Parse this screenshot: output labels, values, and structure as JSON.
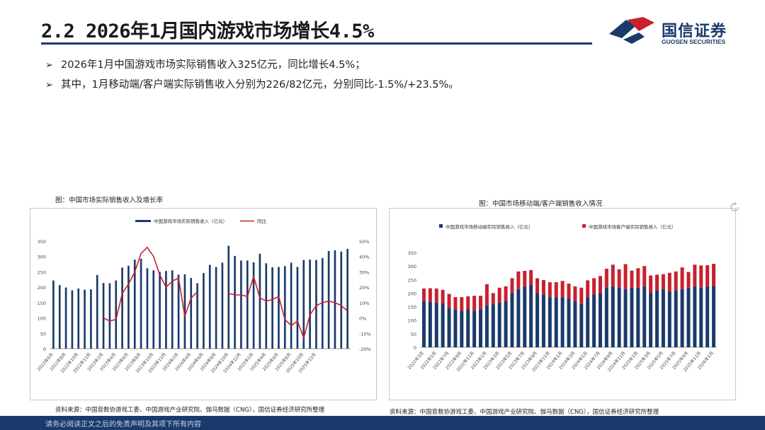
{
  "header": {
    "title": "2.2 2026年1月国内游戏市场增长4.5%",
    "logo_cn": "国信证券",
    "logo_en": "GUOSEN SECURITIES",
    "colors": {
      "navy": "#1a3a6b",
      "red": "#c8202f"
    }
  },
  "bullets": [
    "2026年1月中国游戏市场实际销售收入325亿元，同比增长4.5%；",
    "其中，1月移动端/客户端实际销售收入分别为226/82亿元，分别同比-1.5%/+23.5%。"
  ],
  "left_chart": {
    "caption": "图：中国市场实际销售收入及增长率",
    "source": "资料来源：中国音数协游戏工委、中国游戏产业研究院、伽马数据（CNG），国信证券经济研究所整理"
  },
  "right_chart": {
    "caption": "图：中国市场移动端/客户端销售收入情况",
    "source": "资料来源：中国音数协游戏工委、中国游戏产业研究院、伽马数据（CNG），国信证券经济研究所整理"
  },
  "footer": {
    "disclaimer": "请务必阅读正文之后的免责声明及其项下所有内容"
  },
  "chart_data": [
    {
      "type": "bar",
      "title": "图：中国市场实际销售收入及增长率",
      "series": [
        {
          "name": "中国游戏市场实际销售收入（亿元）",
          "kind": "bar",
          "color": "#1a3a6b",
          "axis": "left",
          "values": [
            222,
            207,
            199,
            190,
            196,
            192,
            193,
            240,
            214,
            213,
            222,
            264,
            270,
            290,
            293,
            262,
            255,
            250,
            253,
            255,
            241,
            242,
            230,
            213,
            246,
            273,
            266,
            280,
            335,
            302,
            287,
            287,
            281,
            309,
            278,
            265,
            266,
            269,
            280,
            266,
            289,
            290,
            289,
            295,
            318,
            320,
            316,
            325
          ]
        },
        {
          "name": "同比",
          "kind": "line",
          "color": "#c8202f",
          "axis": "right",
          "values": [
            null,
            null,
            null,
            null,
            null,
            null,
            null,
            null,
            0,
            -2,
            -1,
            16,
            22,
            30,
            42,
            46,
            40,
            28,
            20,
            24,
            26,
            1,
            13,
            17,
            null,
            null,
            null,
            null,
            16,
            15,
            15,
            14,
            27,
            13,
            11,
            12,
            14,
            -1,
            -5,
            -2,
            -13,
            2,
            8,
            10,
            11,
            10,
            8,
            4.5
          ]
        }
      ],
      "x_tick_labels": [
        "2022年6月",
        "2022年8月",
        "2022年10月",
        "2022年12月",
        "2023年2月",
        "2023年4月",
        "2023年6月",
        "2023年8月",
        "2023年10月",
        "2023年12月",
        "2024年2月",
        "2024年4月",
        "2024年6月",
        "2024年8月",
        "2024年10月",
        "2024年12月",
        "2025年2月",
        "2025年4月",
        "2025年6月",
        "2025年8月",
        "2025年10月",
        "2025年12月"
      ],
      "y_left": {
        "min": 0,
        "max": 350,
        "ticks": [
          "0",
          "50",
          "100",
          "150",
          "200",
          "250",
          "300",
          "350"
        ]
      },
      "y_right": {
        "min": -20,
        "max": 50,
        "ticks": [
          "-20%",
          "-10%",
          "0%",
          "10%",
          "20%",
          "30%",
          "40%",
          "50%"
        ]
      },
      "legend": "top-center"
    },
    {
      "type": "bar",
      "stacked": true,
      "title": "图：中国市场移动端/客户端销售收入情况",
      "series": [
        {
          "name": "中国游戏市场移动端实际销售收入（亿元）",
          "color": "#1a3a6b",
          "values": [
            170,
            168,
            165,
            162,
            145,
            140,
            135,
            140,
            135,
            140,
            155,
            160,
            165,
            170,
            200,
            215,
            225,
            230,
            200,
            195,
            185,
            185,
            185,
            180,
            170,
            160,
            185,
            195,
            200,
            220,
            225,
            220,
            215,
            220,
            220,
            225,
            200,
            210,
            215,
            205,
            210,
            215,
            220,
            225,
            220,
            225,
            226
          ]
        },
        {
          "name": "中国游戏市场客户端实际销售收入（亿元）",
          "color": "#c8202f",
          "values": [
            47,
            50,
            52,
            50,
            52,
            45,
            50,
            48,
            55,
            50,
            78,
            40,
            55,
            55,
            55,
            65,
            57,
            55,
            55,
            53,
            55,
            55,
            60,
            55,
            55,
            60,
            62,
            60,
            63,
            70,
            80,
            68,
            92,
            63,
            72,
            75,
            65,
            58,
            55,
            70,
            70,
            80,
            58,
            80,
            82,
            78,
            82
          ]
        }
      ],
      "x_tick_labels": [
        "2022年3月",
        "2022年5月",
        "2022年7月",
        "2022年9月",
        "2022年11月",
        "2023年1月",
        "2023年3月",
        "2023年5月",
        "2023年7月",
        "2023年9月",
        "2023年11月",
        "2024年1月",
        "2024年3月",
        "2024年5月",
        "2024年7月",
        "2024年9月",
        "2024年11月",
        "2025年1月",
        "2025年3月",
        "2025年5月",
        "2025年7月",
        "2025年9月",
        "2025年11月",
        "2026年1月"
      ],
      "y_left": {
        "min": 0,
        "max": 350,
        "ticks": [
          "0",
          "50",
          "100",
          "150",
          "200",
          "250",
          "300",
          "350"
        ]
      },
      "legend": "top"
    }
  ]
}
